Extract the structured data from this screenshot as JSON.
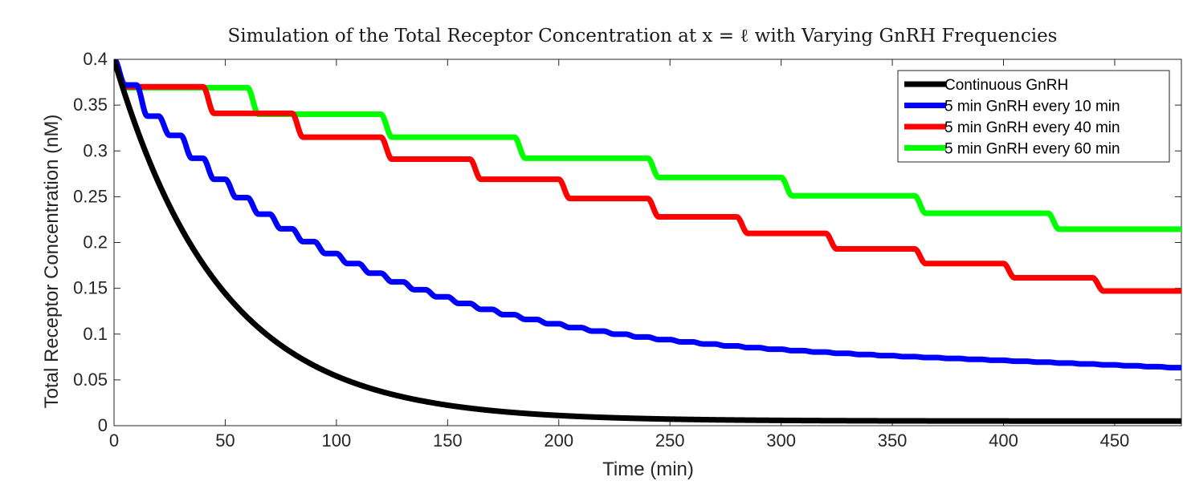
{
  "chart_data": {
    "type": "line",
    "title": "Simulation of the Total Receptor Concentration at x = ℓ with Varying GnRH Frequencies",
    "xlabel": "Time (min)",
    "ylabel": "Total Receptor Concentration (nM)",
    "xlim": [
      0,
      480
    ],
    "ylim": [
      0,
      0.4
    ],
    "xticks": [
      0,
      50,
      100,
      150,
      200,
      250,
      300,
      350,
      400,
      450
    ],
    "xtick_labels": [
      "0",
      "50",
      "100",
      "150",
      "200",
      "250",
      "300",
      "350",
      "400",
      "450"
    ],
    "yticks": [
      0,
      0.05,
      0.1,
      0.15,
      0.2,
      0.25,
      0.3,
      0.35,
      0.4
    ],
    "ytick_labels": [
      "0",
      "0.05",
      "0.1",
      "0.15",
      "0.2",
      "0.25",
      "0.3",
      "0.35",
      "0.4"
    ],
    "legend_position": "top-right",
    "series": [
      {
        "name": "Continuous GnRH",
        "color": "#000000",
        "model": "decay",
        "initial": 0.4,
        "plateau": 0.005,
        "tau_min": 48
      },
      {
        "name": "5 min GnRH every 10 min",
        "color": "#0000ff",
        "model": "step",
        "initial": 0.4,
        "period_min": 10,
        "on_min": 5,
        "drops": [
          0.028,
          0.034,
          0.021,
          0.025,
          0.023,
          0.02,
          0.018,
          0.016,
          0.014,
          0.013,
          0.011,
          0.0105,
          0.0095,
          0.0085,
          0.0078,
          0.0072,
          0.0065,
          0.0058,
          0.0052,
          0.0047,
          0.0042,
          0.0038,
          0.0034,
          0.0031,
          0.0028,
          0.0025,
          0.0023,
          0.0021,
          0.0019,
          0.0017,
          0.0016,
          0.0015,
          0.0014,
          0.0013,
          0.0012,
          0.0011,
          0.001,
          0.001,
          0.001,
          0.001,
          0.001,
          0.001,
          0.001,
          0.001,
          0.001,
          0.001,
          0.001,
          0.001
        ]
      },
      {
        "name": "5 min GnRH every 40 min",
        "color": "#ff0000",
        "model": "step",
        "initial": 0.4,
        "period_min": 40,
        "on_min": 5,
        "drops": [
          0.03,
          0.029,
          0.026,
          0.024,
          0.022,
          0.021,
          0.02,
          0.018,
          0.017,
          0.016,
          0.0155,
          0.0145
        ]
      },
      {
        "name": "5 min GnRH every 60 min",
        "color": "#00ff00",
        "model": "step",
        "initial": 0.4,
        "period_min": 60,
        "on_min": 5,
        "drops": [
          0.031,
          0.029,
          0.025,
          0.023,
          0.021,
          0.02,
          0.019,
          0.0175
        ]
      }
    ]
  }
}
